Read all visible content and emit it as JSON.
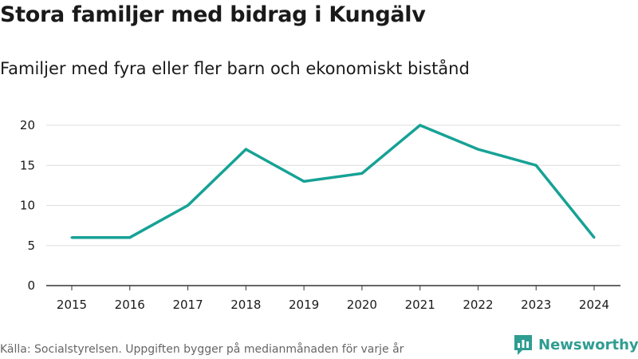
{
  "title": "Stora familjer med bidrag i Kungälv",
  "subtitle": "Familjer med fyra eller fler barn och ekonomiskt bistånd",
  "source": "Källa: Socialstyrelsen. Uppgiften bygger på medianmånaden för varje år",
  "brand": {
    "name": "Newsworthy",
    "logo_icon": "bar-chart-logo-icon"
  },
  "colors": {
    "line": "#16a295",
    "grid": "#dddddd",
    "axis": "#333333",
    "brand": "#2f9d91"
  },
  "chart_data": {
    "type": "line",
    "title": "Stora familjer med bidrag i Kungälv",
    "subtitle": "Familjer med fyra eller fler barn och ekonomiskt bistånd",
    "xlabel": "",
    "ylabel": "",
    "categories": [
      "2015",
      "2016",
      "2017",
      "2018",
      "2019",
      "2020",
      "2021",
      "2022",
      "2023",
      "2024"
    ],
    "series": [
      {
        "name": "Familjer med fyra eller fler barn och ekonomiskt bistånd",
        "values": [
          6,
          6,
          10,
          17,
          13,
          14,
          20,
          17,
          15,
          6
        ]
      }
    ],
    "ylim": [
      0,
      20
    ],
    "yticks": [
      0,
      5,
      10,
      15,
      20
    ],
    "grid": true,
    "legend": "none"
  }
}
